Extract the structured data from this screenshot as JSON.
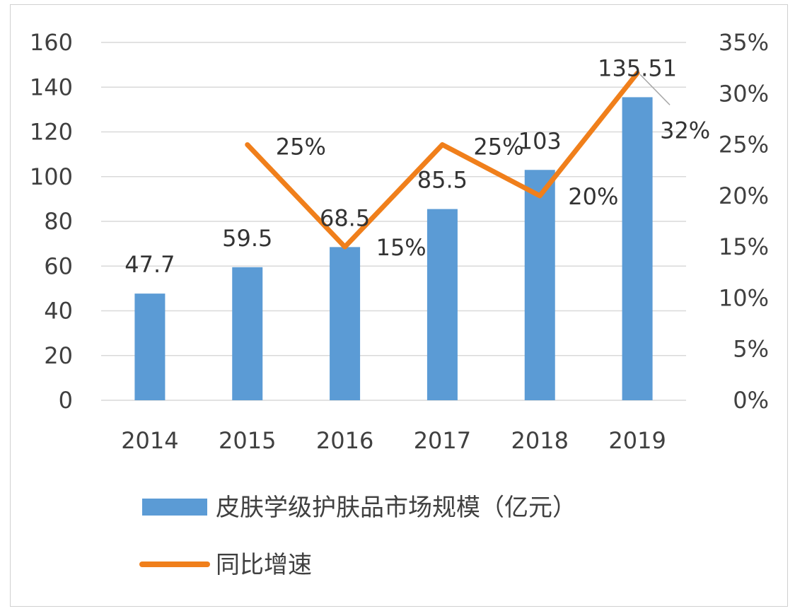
{
  "chart_data": {
    "type": "bar+line",
    "categories": [
      "2014",
      "2015",
      "2016",
      "2017",
      "2018",
      "2019"
    ],
    "series": [
      {
        "name": "皮肤学级护肤品市场规模（亿元）",
        "type": "bar",
        "axis": "left",
        "color": "#5b9bd5",
        "values": [
          47.7,
          59.5,
          68.5,
          85.5,
          103,
          135.51
        ],
        "labels": [
          "47.7",
          "59.5",
          "68.5",
          "85.5",
          "103",
          "135.51"
        ]
      },
      {
        "name": "同比增速",
        "type": "line",
        "axis": "right",
        "color": "#f07f1b",
        "values": [
          null,
          25,
          15,
          25,
          20,
          32
        ],
        "labels": [
          "",
          "25%",
          "15%",
          "25%",
          "20%",
          "32%"
        ]
      }
    ],
    "y_left": {
      "min": 0,
      "max": 160,
      "step": 20,
      "ticks": [
        "0",
        "20",
        "40",
        "60",
        "80",
        "100",
        "120",
        "140",
        "160"
      ]
    },
    "y_right": {
      "min": 0,
      "max": 35,
      "step": 5,
      "ticks": [
        "0%",
        "5%",
        "10%",
        "15%",
        "20%",
        "25%",
        "30%",
        "35%"
      ]
    },
    "grid": true,
    "legend": "bottom-left"
  }
}
